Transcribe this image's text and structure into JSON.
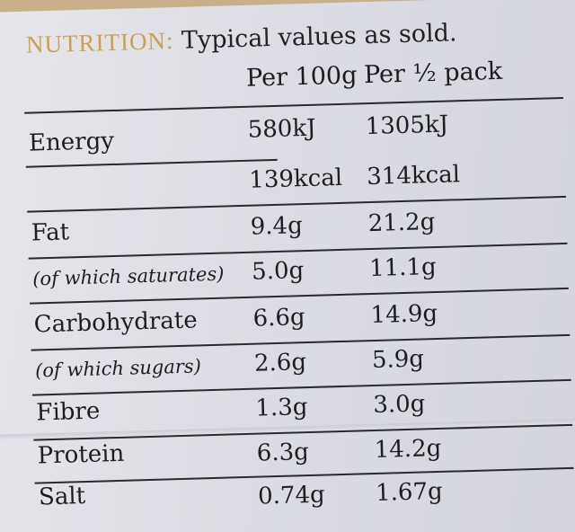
{
  "header": {
    "nutrition_label": "NUTRITION:",
    "subtitle": "Typical values as sold.",
    "col_per100": "Per 100g",
    "col_perhalf": "Per ½ pack"
  },
  "rows": [
    {
      "name": "Energy",
      "per100": "580kJ",
      "perhalf": "1305kJ"
    },
    {
      "name": "",
      "per100": "139kcal",
      "perhalf": "314kcal"
    },
    {
      "name": "Fat",
      "per100": "9.4g",
      "perhalf": "21.2g"
    },
    {
      "name": "(of which saturates)",
      "per100": "5.0g",
      "perhalf": "11.1g"
    },
    {
      "name": "Carbohydrate",
      "per100": "6.6g",
      "perhalf": "14.9g"
    },
    {
      "name": "(of which sugars)",
      "per100": "2.6g",
      "perhalf": "5.9g"
    },
    {
      "name": "Fibre",
      "per100": "1.3g",
      "perhalf": "3.0g"
    },
    {
      "name": "Protein",
      "per100": "6.3g",
      "perhalf": "14.2g"
    },
    {
      "name": "Salt",
      "per100": "0.74g",
      "perhalf": "1.67g"
    }
  ],
  "colors": {
    "label_gold": "#c9a14e",
    "text": "#1e1e1e",
    "card": "#dcdde4"
  }
}
